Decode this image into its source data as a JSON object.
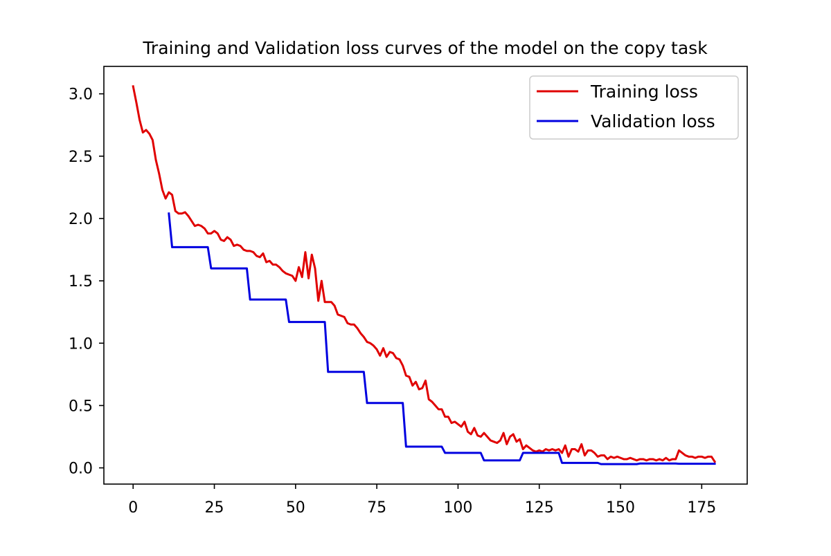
{
  "chart_data": {
    "type": "line",
    "title": "Training and Validation loss curves of the model on the copy task",
    "xlabel": "",
    "ylabel": "",
    "xlim": [
      -9,
      189
    ],
    "ylim": [
      -0.13,
      3.22
    ],
    "x_ticks": [
      0,
      25,
      50,
      75,
      100,
      125,
      150,
      175
    ],
    "x_tick_labels": [
      "0",
      "25",
      "50",
      "75",
      "100",
      "125",
      "150",
      "175"
    ],
    "y_ticks": [
      0.0,
      0.5,
      1.0,
      1.5,
      2.0,
      2.5,
      3.0
    ],
    "y_tick_labels": [
      "0.0",
      "0.5",
      "1.0",
      "1.5",
      "2.0",
      "2.5",
      "3.0"
    ],
    "grid": false,
    "legend_position": "top-right",
    "series": [
      {
        "name": "Training loss",
        "color": "#e00000",
        "step": false,
        "points": [
          [
            0,
            3.06
          ],
          [
            1,
            2.93
          ],
          [
            2,
            2.79
          ],
          [
            3,
            2.69
          ],
          [
            4,
            2.71
          ],
          [
            5,
            2.68
          ],
          [
            6,
            2.63
          ],
          [
            7,
            2.47
          ],
          [
            8,
            2.36
          ],
          [
            9,
            2.23
          ],
          [
            10,
            2.16
          ],
          [
            11,
            2.21
          ],
          [
            12,
            2.19
          ],
          [
            13,
            2.06
          ],
          [
            14,
            2.04
          ],
          [
            15,
            2.04
          ],
          [
            16,
            2.05
          ],
          [
            17,
            2.02
          ],
          [
            18,
            1.98
          ],
          [
            19,
            1.94
          ],
          [
            20,
            1.95
          ],
          [
            21,
            1.94
          ],
          [
            22,
            1.92
          ],
          [
            23,
            1.88
          ],
          [
            24,
            1.88
          ],
          [
            25,
            1.9
          ],
          [
            26,
            1.88
          ],
          [
            27,
            1.83
          ],
          [
            28,
            1.82
          ],
          [
            29,
            1.85
          ],
          [
            30,
            1.83
          ],
          [
            31,
            1.78
          ],
          [
            32,
            1.79
          ],
          [
            33,
            1.78
          ],
          [
            34,
            1.75
          ],
          [
            35,
            1.74
          ],
          [
            36,
            1.74
          ],
          [
            37,
            1.73
          ],
          [
            38,
            1.7
          ],
          [
            39,
            1.69
          ],
          [
            40,
            1.72
          ],
          [
            41,
            1.65
          ],
          [
            42,
            1.66
          ],
          [
            43,
            1.63
          ],
          [
            44,
            1.63
          ],
          [
            45,
            1.61
          ],
          [
            46,
            1.58
          ],
          [
            47,
            1.56
          ],
          [
            48,
            1.55
          ],
          [
            49,
            1.54
          ],
          [
            50,
            1.5
          ],
          [
            51,
            1.61
          ],
          [
            52,
            1.53
          ],
          [
            53,
            1.73
          ],
          [
            54,
            1.52
          ],
          [
            55,
            1.71
          ],
          [
            56,
            1.6
          ],
          [
            57,
            1.34
          ],
          [
            58,
            1.5
          ],
          [
            59,
            1.33
          ],
          [
            60,
            1.33
          ],
          [
            61,
            1.33
          ],
          [
            62,
            1.3
          ],
          [
            63,
            1.23
          ],
          [
            64,
            1.22
          ],
          [
            65,
            1.21
          ],
          [
            66,
            1.16
          ],
          [
            67,
            1.15
          ],
          [
            68,
            1.15
          ],
          [
            69,
            1.12
          ],
          [
            70,
            1.08
          ],
          [
            71,
            1.05
          ],
          [
            72,
            1.01
          ],
          [
            73,
            1.0
          ],
          [
            74,
            0.98
          ],
          [
            75,
            0.95
          ],
          [
            76,
            0.9
          ],
          [
            77,
            0.96
          ],
          [
            78,
            0.89
          ],
          [
            79,
            0.93
          ],
          [
            80,
            0.92
          ],
          [
            81,
            0.88
          ],
          [
            82,
            0.87
          ],
          [
            83,
            0.82
          ],
          [
            84,
            0.74
          ],
          [
            85,
            0.73
          ],
          [
            86,
            0.66
          ],
          [
            87,
            0.69
          ],
          [
            88,
            0.63
          ],
          [
            89,
            0.64
          ],
          [
            90,
            0.7
          ],
          [
            91,
            0.55
          ],
          [
            92,
            0.53
          ],
          [
            93,
            0.5
          ],
          [
            94,
            0.47
          ],
          [
            95,
            0.47
          ],
          [
            96,
            0.41
          ],
          [
            97,
            0.41
          ],
          [
            98,
            0.36
          ],
          [
            99,
            0.37
          ],
          [
            100,
            0.35
          ],
          [
            101,
            0.33
          ],
          [
            102,
            0.37
          ],
          [
            103,
            0.29
          ],
          [
            104,
            0.27
          ],
          [
            105,
            0.32
          ],
          [
            106,
            0.26
          ],
          [
            107,
            0.25
          ],
          [
            108,
            0.28
          ],
          [
            109,
            0.25
          ],
          [
            110,
            0.22
          ],
          [
            111,
            0.21
          ],
          [
            112,
            0.2
          ],
          [
            113,
            0.22
          ],
          [
            114,
            0.28
          ],
          [
            115,
            0.19
          ],
          [
            116,
            0.25
          ],
          [
            117,
            0.27
          ],
          [
            118,
            0.21
          ],
          [
            119,
            0.23
          ],
          [
            120,
            0.15
          ],
          [
            121,
            0.18
          ],
          [
            122,
            0.16
          ],
          [
            123,
            0.14
          ],
          [
            124,
            0.13
          ],
          [
            125,
            0.14
          ],
          [
            126,
            0.13
          ],
          [
            127,
            0.15
          ],
          [
            128,
            0.14
          ],
          [
            129,
            0.15
          ],
          [
            130,
            0.14
          ],
          [
            131,
            0.15
          ],
          [
            132,
            0.12
          ],
          [
            133,
            0.18
          ],
          [
            134,
            0.09
          ],
          [
            135,
            0.15
          ],
          [
            136,
            0.15
          ],
          [
            137,
            0.13
          ],
          [
            138,
            0.19
          ],
          [
            139,
            0.1
          ],
          [
            140,
            0.14
          ],
          [
            141,
            0.14
          ],
          [
            142,
            0.12
          ],
          [
            143,
            0.09
          ],
          [
            144,
            0.1
          ],
          [
            145,
            0.1
          ],
          [
            146,
            0.07
          ],
          [
            147,
            0.09
          ],
          [
            148,
            0.08
          ],
          [
            149,
            0.09
          ],
          [
            150,
            0.08
          ],
          [
            151,
            0.07
          ],
          [
            152,
            0.07
          ],
          [
            153,
            0.08
          ],
          [
            154,
            0.07
          ],
          [
            155,
            0.06
          ],
          [
            156,
            0.07
          ],
          [
            157,
            0.07
          ],
          [
            158,
            0.06
          ],
          [
            159,
            0.07
          ],
          [
            160,
            0.07
          ],
          [
            161,
            0.06
          ],
          [
            162,
            0.07
          ],
          [
            163,
            0.06
          ],
          [
            164,
            0.08
          ],
          [
            165,
            0.06
          ],
          [
            166,
            0.07
          ],
          [
            167,
            0.07
          ],
          [
            168,
            0.14
          ],
          [
            169,
            0.12
          ],
          [
            170,
            0.1
          ],
          [
            171,
            0.09
          ],
          [
            172,
            0.09
          ],
          [
            173,
            0.08
          ],
          [
            174,
            0.09
          ],
          [
            175,
            0.09
          ],
          [
            176,
            0.08
          ],
          [
            177,
            0.09
          ],
          [
            178,
            0.09
          ],
          [
            179,
            0.05
          ]
        ]
      },
      {
        "name": "Validation loss",
        "color": "#0000e0",
        "step": true,
        "points": [
          [
            11,
            2.04
          ],
          [
            12,
            1.77
          ],
          [
            23,
            1.77
          ],
          [
            24,
            1.6
          ],
          [
            35,
            1.6
          ],
          [
            36,
            1.35
          ],
          [
            47,
            1.35
          ],
          [
            48,
            1.17
          ],
          [
            59,
            1.17
          ],
          [
            60,
            0.77
          ],
          [
            71,
            0.77
          ],
          [
            72,
            0.52
          ],
          [
            83,
            0.52
          ],
          [
            84,
            0.17
          ],
          [
            95,
            0.17
          ],
          [
            96,
            0.12
          ],
          [
            107,
            0.12
          ],
          [
            108,
            0.06
          ],
          [
            119,
            0.06
          ],
          [
            120,
            0.12
          ],
          [
            131,
            0.12
          ],
          [
            132,
            0.04
          ],
          [
            143,
            0.04
          ],
          [
            144,
            0.03
          ],
          [
            155,
            0.03
          ],
          [
            156,
            0.035
          ],
          [
            167,
            0.035
          ],
          [
            168,
            0.033
          ],
          [
            179,
            0.033
          ]
        ]
      }
    ]
  }
}
